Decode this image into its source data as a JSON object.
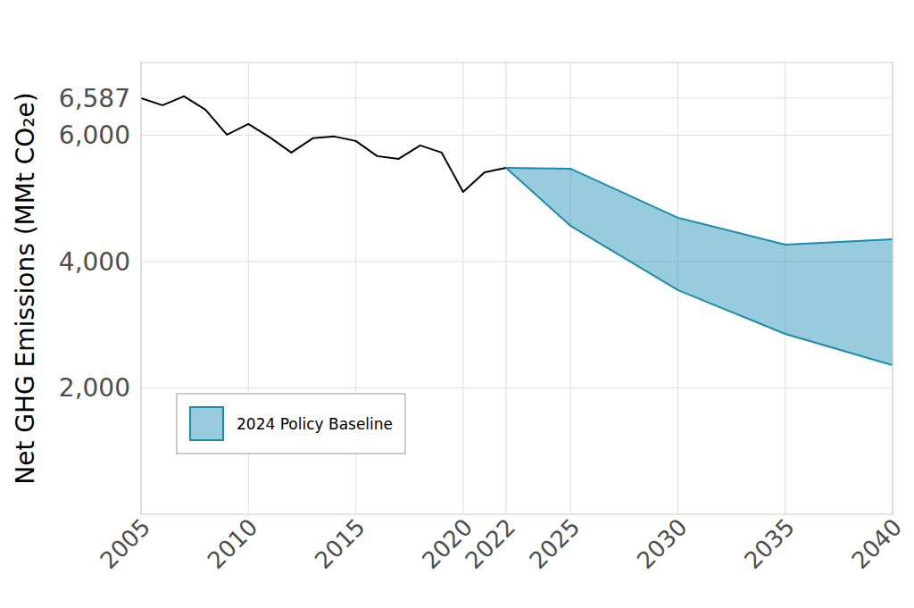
{
  "chart_data": {
    "type": "line",
    "y_label": "Net GHG Emissions (MMt CO₂e)",
    "xlim": [
      2005,
      2040
    ],
    "xticks": [
      2005,
      2010,
      2015,
      2020,
      2022,
      2025,
      2030,
      2035,
      2040
    ],
    "ylim": [
      0,
      7150
    ],
    "yticks": [
      {
        "value": 2000,
        "label": "2,000"
      },
      {
        "value": 4000,
        "label": "4,000"
      },
      {
        "value": 6000,
        "label": "6,000"
      },
      {
        "value": 6587,
        "label": "6,587"
      }
    ],
    "grid": true,
    "legend": "lower left",
    "series": [
      {
        "type": "line",
        "color": "#000000",
        "x": [
          2005,
          2006,
          2007,
          2008,
          2009,
          2010,
          2011,
          2012,
          2013,
          2014,
          2015,
          2016,
          2017,
          2018,
          2019,
          2020,
          2021,
          2022
        ],
        "values": [
          6587,
          6473,
          6615,
          6403,
          6007,
          6177,
          5965,
          5724,
          5951,
          5979,
          5908,
          5668,
          5625,
          5837,
          5724,
          5102,
          5413,
          5484
        ]
      },
      {
        "type": "area",
        "name": "2024 Policy Baseline",
        "color": "#1a8bb0",
        "x": [
          2022,
          2025,
          2030,
          2035,
          2040
        ],
        "values": [
          5484,
          5470,
          4693,
          4269,
          4353
        ],
        "lower": [
          5484,
          4565,
          3548,
          2855,
          2360
        ]
      }
    ]
  }
}
